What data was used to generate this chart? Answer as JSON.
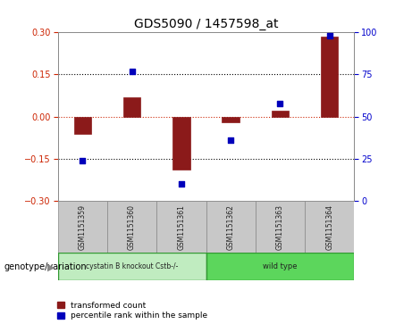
{
  "title": "GDS5090 / 1457598_at",
  "samples": [
    "GSM1151359",
    "GSM1151360",
    "GSM1151361",
    "GSM1151362",
    "GSM1151363",
    "GSM1151364"
  ],
  "bar_values": [
    -0.06,
    0.07,
    -0.19,
    -0.02,
    0.02,
    0.285
  ],
  "scatter_values": [
    24,
    77,
    10,
    36,
    58,
    98
  ],
  "ylim_left": [
    -0.3,
    0.3
  ],
  "ylim_right": [
    0,
    100
  ],
  "yticks_left": [
    -0.3,
    -0.15,
    0,
    0.15,
    0.3
  ],
  "yticks_right": [
    0,
    25,
    50,
    75,
    100
  ],
  "hlines_black": [
    0.15,
    -0.15
  ],
  "hline_red": 0,
  "group1_label": "cystatin B knockout Cstb-/-",
  "group2_label": "wild type",
  "group1_indices": [
    0,
    1,
    2
  ],
  "group2_indices": [
    3,
    4,
    5
  ],
  "group1_color": "#c0ecc0",
  "group2_color": "#5cd65c",
  "bar_color": "#8b1a1a",
  "scatter_color": "#0000bb",
  "legend_bar_label": "transformed count",
  "legend_scatter_label": "percentile rank within the sample",
  "genotype_label": "genotype/variation",
  "bg_color": "#ffffff",
  "plot_bg": "#ffffff",
  "bar_width": 0.35,
  "tick_label_color_left": "#cc2200",
  "tick_label_color_right": "#0000cc",
  "sample_box_color": "#c8c8c8",
  "genotype_border_color": "#339933"
}
